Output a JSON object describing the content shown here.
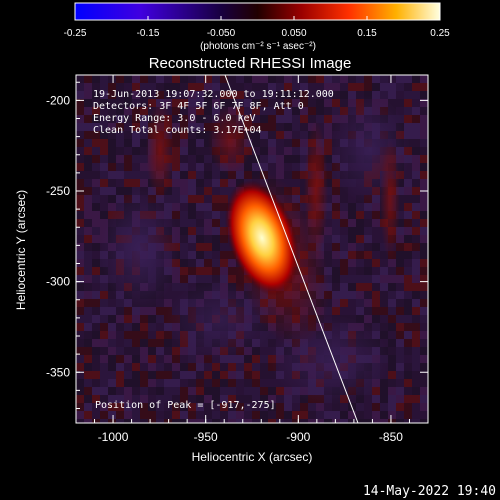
{
  "colorbar": {
    "ticks": [
      "-0.25",
      "-0.15",
      "-0.050",
      "0.050",
      "0.15",
      "0.25"
    ],
    "tick_values": [
      -0.25,
      -0.15,
      -0.05,
      0.05,
      0.15,
      0.25
    ],
    "range": [
      -0.25,
      0.25
    ],
    "units_label": "(photons cm⁻² s⁻¹ asec⁻²)",
    "colormap": [
      "#0000ff",
      "#5a00d6",
      "#000000",
      "#7a0000",
      "#ff2000",
      "#ffc000",
      "#ffffe0"
    ]
  },
  "image": {
    "title": "Reconstructed RHESSI Image",
    "info_lines": [
      "19-Jun-2013 19:07:32.000 to 19:11:12.000",
      "Detectors: 3F 4F 5F 6F 7F 8F, Att 0",
      "Energy Range: 3.0 - 6.0 keV",
      "Clean    Total counts: 3.17E+04"
    ],
    "peak_text": "Position of Peak = [-917,-275]",
    "x_axis_label": "Heliocentric X (arcsec)",
    "y_axis_label": "Heliocentric Y (arcsec)",
    "x_ticks": [
      "-1000",
      "-950",
      "-900",
      "-850"
    ],
    "x_tick_values": [
      -1000,
      -950,
      -900,
      -850
    ],
    "y_ticks": [
      "-200",
      "-250",
      "-300",
      "-350"
    ],
    "y_tick_values": [
      -200,
      -250,
      -300,
      -350
    ],
    "x_range": [
      -1020,
      -830
    ],
    "y_range": [
      -378,
      -186
    ],
    "peak_position": [
      -917,
      -275
    ],
    "footer_date": "14-May-2022 19:40"
  }
}
